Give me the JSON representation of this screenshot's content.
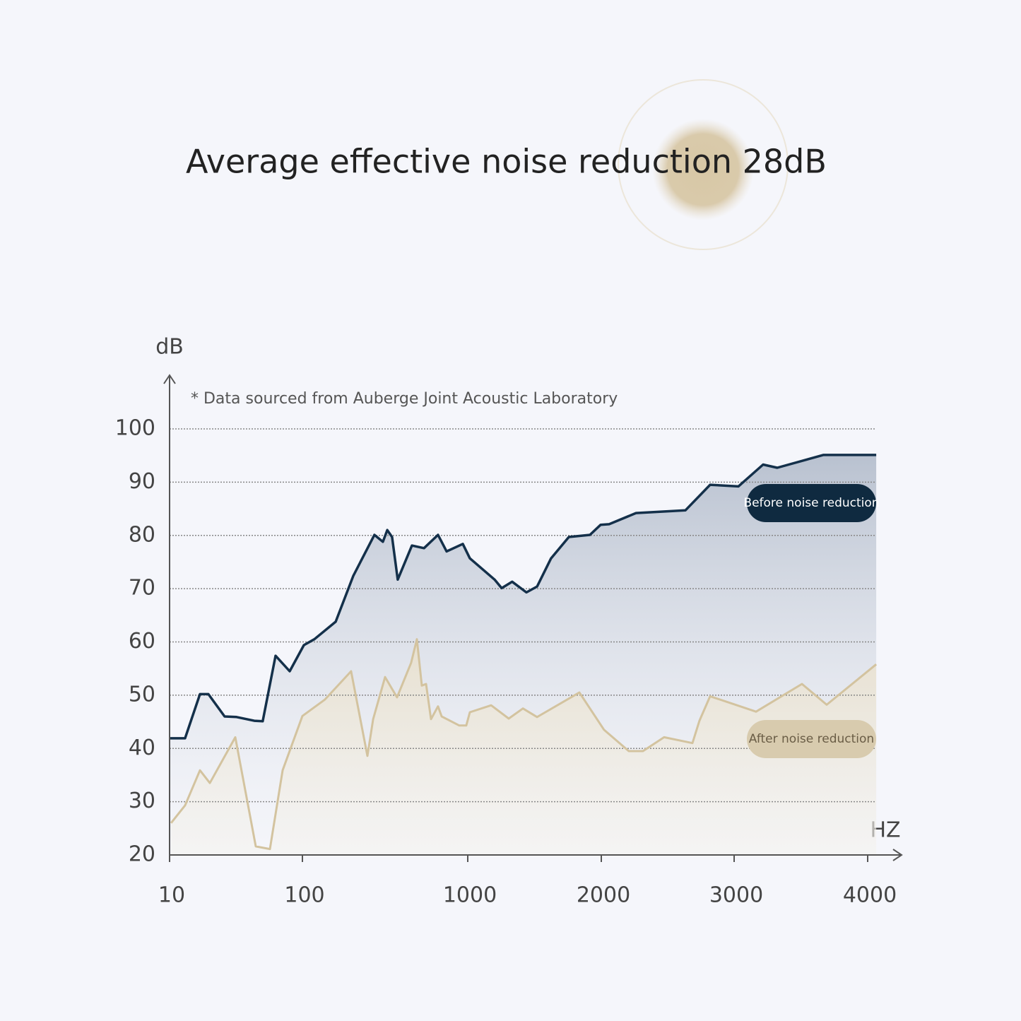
{
  "chart_data": {
    "type": "line",
    "title": "Average effective noise reduction 28dB",
    "annotation": "* Data sourced from Auberge Joint Acoustic Laboratory",
    "y_label": "dB",
    "x_label": "HZ",
    "xlim": [
      10,
      4064
    ],
    "xticks": [
      10,
      100,
      1000,
      2000,
      3000,
      4000
    ],
    "ylim": [
      20,
      100
    ],
    "yticks": [
      20,
      30,
      40,
      50,
      60,
      70,
      80,
      90,
      100
    ],
    "grid": true,
    "series": [
      {
        "name": "Before noise reduction",
        "color": "#14304a",
        "x": [
          10,
          20.5,
          30.6,
          36.3,
          47.3,
          55.4,
          67.4,
          73.1,
          81.8,
          91.4,
          108,
          165,
          281,
          377,
          492,
          538,
          562,
          588,
          619,
          696,
          762,
          838,
          885,
          973,
          1016,
          1201,
          1254,
          1333,
          1439,
          1519,
          1624,
          1757,
          1915,
          1995,
          2059,
          2261,
          2633,
          2819,
          3032,
          3217,
          3323,
          3667,
          4064
        ],
        "values": [
          41.9,
          41.9,
          50.2,
          50.2,
          46,
          45.9,
          45.2,
          45.1,
          57.4,
          54.5,
          59.4,
          60.5,
          63.8,
          72.4,
          80.1,
          78.8,
          81,
          79.7,
          71.7,
          78.1,
          77.6,
          80.1,
          77,
          78.4,
          75.7,
          71.7,
          70.1,
          71.3,
          69.3,
          70.4,
          75.7,
          79.7,
          80.1,
          82,
          82.1,
          84.2,
          84.7,
          89.5,
          89.2,
          93.3,
          92.7,
          95.1,
          95.1
        ]
      },
      {
        "name": "After noise reduction",
        "color": "#d3c39f",
        "x": [
          11,
          20.5,
          30.6,
          37.3,
          54.5,
          68.4,
          78,
          86.6,
          100,
          223,
          365,
          454,
          485,
          550,
          615,
          692,
          723,
          750,
          773,
          800,
          838,
          858,
          954,
          992,
          1016,
          1175,
          1307,
          1413,
          1519,
          1836,
          2021,
          2207,
          2314,
          2473,
          2686,
          2739,
          2819,
          3164,
          3508,
          3693,
          4064
        ],
        "values": [
          26,
          29.3,
          35.9,
          33.5,
          42.1,
          21.6,
          21.1,
          35.9,
          46.1,
          49.2,
          54.5,
          38.6,
          45.5,
          53.4,
          49.6,
          56.1,
          60.5,
          51.8,
          52.1,
          45.5,
          47.9,
          46,
          44.3,
          44.3,
          46.8,
          48.1,
          45.6,
          47.5,
          45.9,
          50.5,
          43.5,
          39.5,
          39.5,
          42.1,
          41,
          45.2,
          49.8,
          46.9,
          52.1,
          48.2,
          55.8
        ]
      }
    ]
  }
}
